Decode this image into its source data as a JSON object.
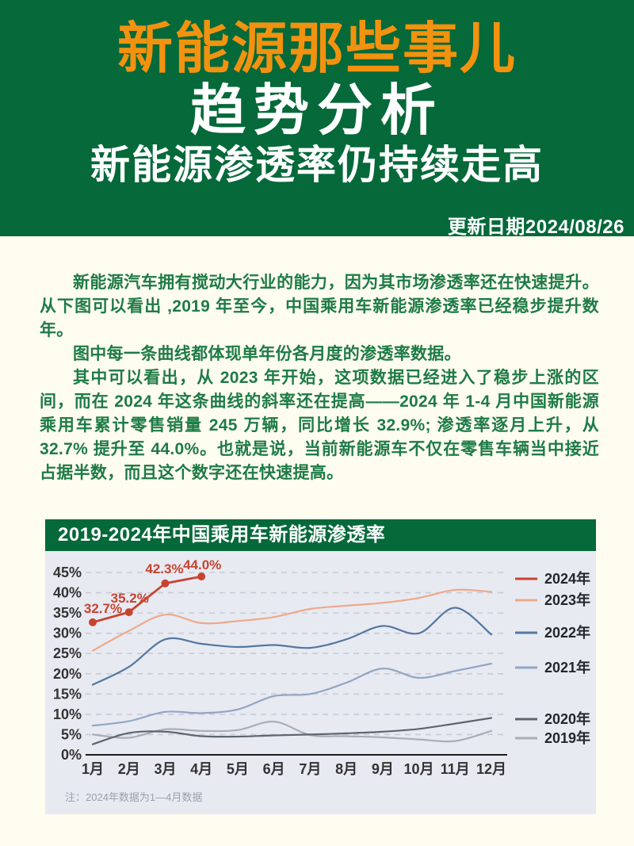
{
  "header": {
    "brand": "新能源那些事儿",
    "title": "趋势分析",
    "subtitle": "新能源渗透率仍持续走高",
    "update_date": "更新日期2024/08/26"
  },
  "article": {
    "paragraphs": [
      "新能源汽车拥有搅动大行业的能力，因为其市场渗透率还在快速提升。从下图可以看出 ,2019 年至今，中国乘用车新能源渗透率已经稳步提升数年。",
      "图中每一条曲线都体现单年份各月度的渗透率数据。",
      "其中可以看出，从 2023 年开始，这项数据已经进入了稳步上涨的区间，而在 2024 年这条曲线的斜率还在提高——2024 年 1-4 月中国新能源乘用车累计零售销量 245 万辆，同比增长 32.9%; 渗透率逐月上升，从 32.7% 提升至 44.0%。也就是说，当前新能源车不仅在零售车辆当中接近占据半数，而且这个数字还在快速提高。"
    ]
  },
  "chart": {
    "title": "2019-2024年中国乘用车新能源渗透率",
    "note": "注：2024年数据为1—4月数据"
  },
  "chart_data": {
    "type": "line",
    "title": "2019-2024年中国乘用车新能源渗透率",
    "note": "注：2024年数据为1—4月数据",
    "x_labels": [
      "1月",
      "2月",
      "3月",
      "4月",
      "5月",
      "6月",
      "7月",
      "8月",
      "9月",
      "10月",
      "11月",
      "12月"
    ],
    "y_tick_labels": [
      "0%",
      "5%",
      "10%",
      "15%",
      "20%",
      "25%",
      "30%",
      "35%",
      "40%",
      "45%"
    ],
    "ylim": [
      0,
      47
    ],
    "unit": "%",
    "grid": "dashed-horizontal",
    "legend_position": "right",
    "series": [
      {
        "name": "2024年",
        "color": "#c8432f",
        "markers": true,
        "values": [
          32.7,
          35.2,
          42.3,
          44.0
        ],
        "point_labels": [
          "32.7%",
          "35.2%",
          "42.3%",
          "44.0%"
        ]
      },
      {
        "name": "2023年",
        "color": "#eda98b",
        "values": [
          25.7,
          30.6,
          34.6,
          32.5,
          33.0,
          34.0,
          36.0,
          36.8,
          37.5,
          38.7,
          40.7,
          40.2
        ]
      },
      {
        "name": "2022年",
        "color": "#53789f",
        "values": [
          17.3,
          21.7,
          28.5,
          27.4,
          26.6,
          27.1,
          26.4,
          28.5,
          31.8,
          30.0,
          36.3,
          29.7
        ]
      },
      {
        "name": "2021年",
        "color": "#91a6c3",
        "values": [
          7.2,
          8.3,
          10.6,
          10.3,
          11.2,
          14.5,
          15.0,
          17.8,
          21.3,
          19.0,
          20.7,
          22.5
        ]
      },
      {
        "name": "2020年",
        "color": "#5d6670",
        "values": [
          2.6,
          5.4,
          5.7,
          4.6,
          4.5,
          4.8,
          5.0,
          5.3,
          5.7,
          6.4,
          7.7,
          9.1
        ]
      },
      {
        "name": "2019年",
        "color": "#a9aeb6",
        "values": [
          5.0,
          4.2,
          6.3,
          5.9,
          6.1,
          8.2,
          4.9,
          4.6,
          4.3,
          3.8,
          3.4,
          5.9
        ]
      }
    ]
  },
  "colors": {
    "header_green": "#05693a",
    "accent_orange": "#f2920f",
    "page_cream": "#fffcf0",
    "body_text_green": "#1e7b46",
    "chart_background": "#e8eaf2",
    "gridline": "#c9cbd6",
    "axis": "#1b1b1b",
    "tick_text": "#333333",
    "note_text": "#9ca0aa",
    "label_red": "#c8432f"
  }
}
